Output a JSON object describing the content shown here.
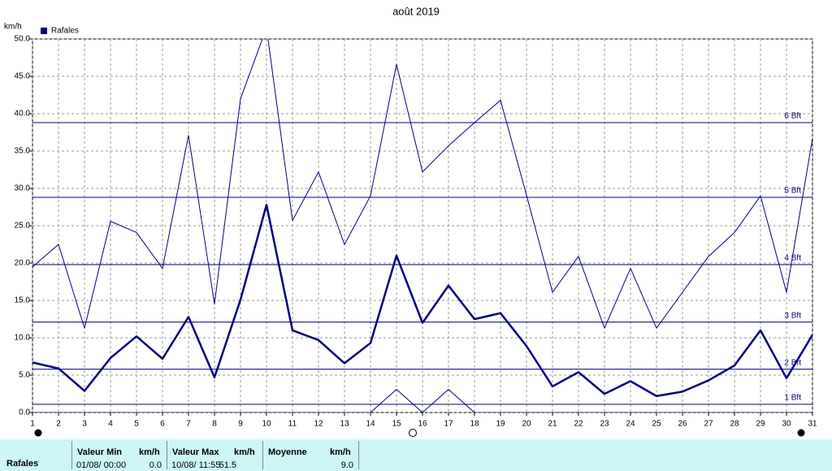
{
  "chart_data": {
    "type": "line",
    "title": "août 2019",
    "y_unit": "km/h",
    "legend": "Rafales",
    "x": [
      1,
      2,
      3,
      4,
      5,
      6,
      7,
      8,
      9,
      10,
      11,
      12,
      13,
      14,
      15,
      16,
      17,
      18,
      19,
      20,
      21,
      22,
      23,
      24,
      25,
      26,
      27,
      28,
      29,
      30,
      31
    ],
    "xlim": [
      1,
      31
    ],
    "series": [
      {
        "color": "#000080",
        "width": 1,
        "values": [
          19.5,
          22.5,
          11.3,
          25.6,
          24.1,
          19.3,
          37.1,
          14.5,
          42,
          51.5,
          25.7,
          32.2,
          22.5,
          29,
          46.6,
          32.2,
          35.7,
          38.8,
          41.8,
          29.1,
          16.1,
          20.9,
          11.3,
          19.3,
          11.3,
          16.1,
          20.9,
          24.1,
          29,
          16.1,
          36.7
        ]
      },
      {
        "color": "#000080",
        "width": 2.5,
        "values": [
          6.7,
          5.9,
          2.9,
          7.3,
          10.2,
          7.2,
          12.8,
          4.7,
          15.1,
          27.8,
          11,
          9.7,
          6.6,
          9.3,
          21,
          12,
          17,
          12.5,
          13.3,
          8.9,
          3.5,
          5.4,
          2.5,
          4.2,
          2.2,
          2.8,
          4.3,
          6.3,
          11,
          4.6,
          10.4
        ]
      },
      {
        "color": "#000080",
        "width": 1,
        "values": [
          0,
          0,
          0,
          0,
          0,
          0,
          0,
          0,
          0,
          0,
          0,
          0,
          0,
          0,
          3.1,
          0,
          3.1,
          0,
          0,
          0,
          0,
          0,
          0,
          0,
          0,
          0,
          0,
          0,
          0,
          0,
          0
        ]
      }
    ],
    "ylim": [
      0,
      50
    ],
    "yticks": [
      {
        "value": 0,
        "label": "0.0"
      },
      {
        "value": 5,
        "label": "5.0"
      },
      {
        "value": 10,
        "label": "10.0"
      },
      {
        "value": 15,
        "label": "15.0"
      },
      {
        "value": 20,
        "label": "20.0"
      },
      {
        "value": 25,
        "label": "25.0"
      },
      {
        "value": 30,
        "label": "30.0"
      },
      {
        "value": 35,
        "label": "35.0"
      },
      {
        "value": 40,
        "label": "40.0"
      },
      {
        "value": 45,
        "label": "45.0"
      },
      {
        "value": 50,
        "label": "50.0"
      }
    ],
    "grid": true,
    "reference_lines": [
      {
        "value": 1.1,
        "label": "1 Bft"
      },
      {
        "value": 5.8,
        "label": "2 Bft"
      },
      {
        "value": 12.1,
        "label": "3 Bft"
      },
      {
        "value": 19.8,
        "label": "4 Bft"
      },
      {
        "value": 28.8,
        "label": "5 Bft"
      },
      {
        "value": 38.8,
        "label": "6 Bft"
      }
    ]
  },
  "summary": {
    "row_label": "Rafales",
    "min": {
      "header": "Valeur Min",
      "unit": "km/h",
      "date": "01/08/ 00:00",
      "value": "0.0"
    },
    "max": {
      "header": "Valeur Max",
      "unit": "km/h",
      "date": "10/08/ 11:55",
      "value": "51.5"
    },
    "mean": {
      "header": "Moyenne",
      "unit": "km/h",
      "value": "9.0"
    }
  }
}
